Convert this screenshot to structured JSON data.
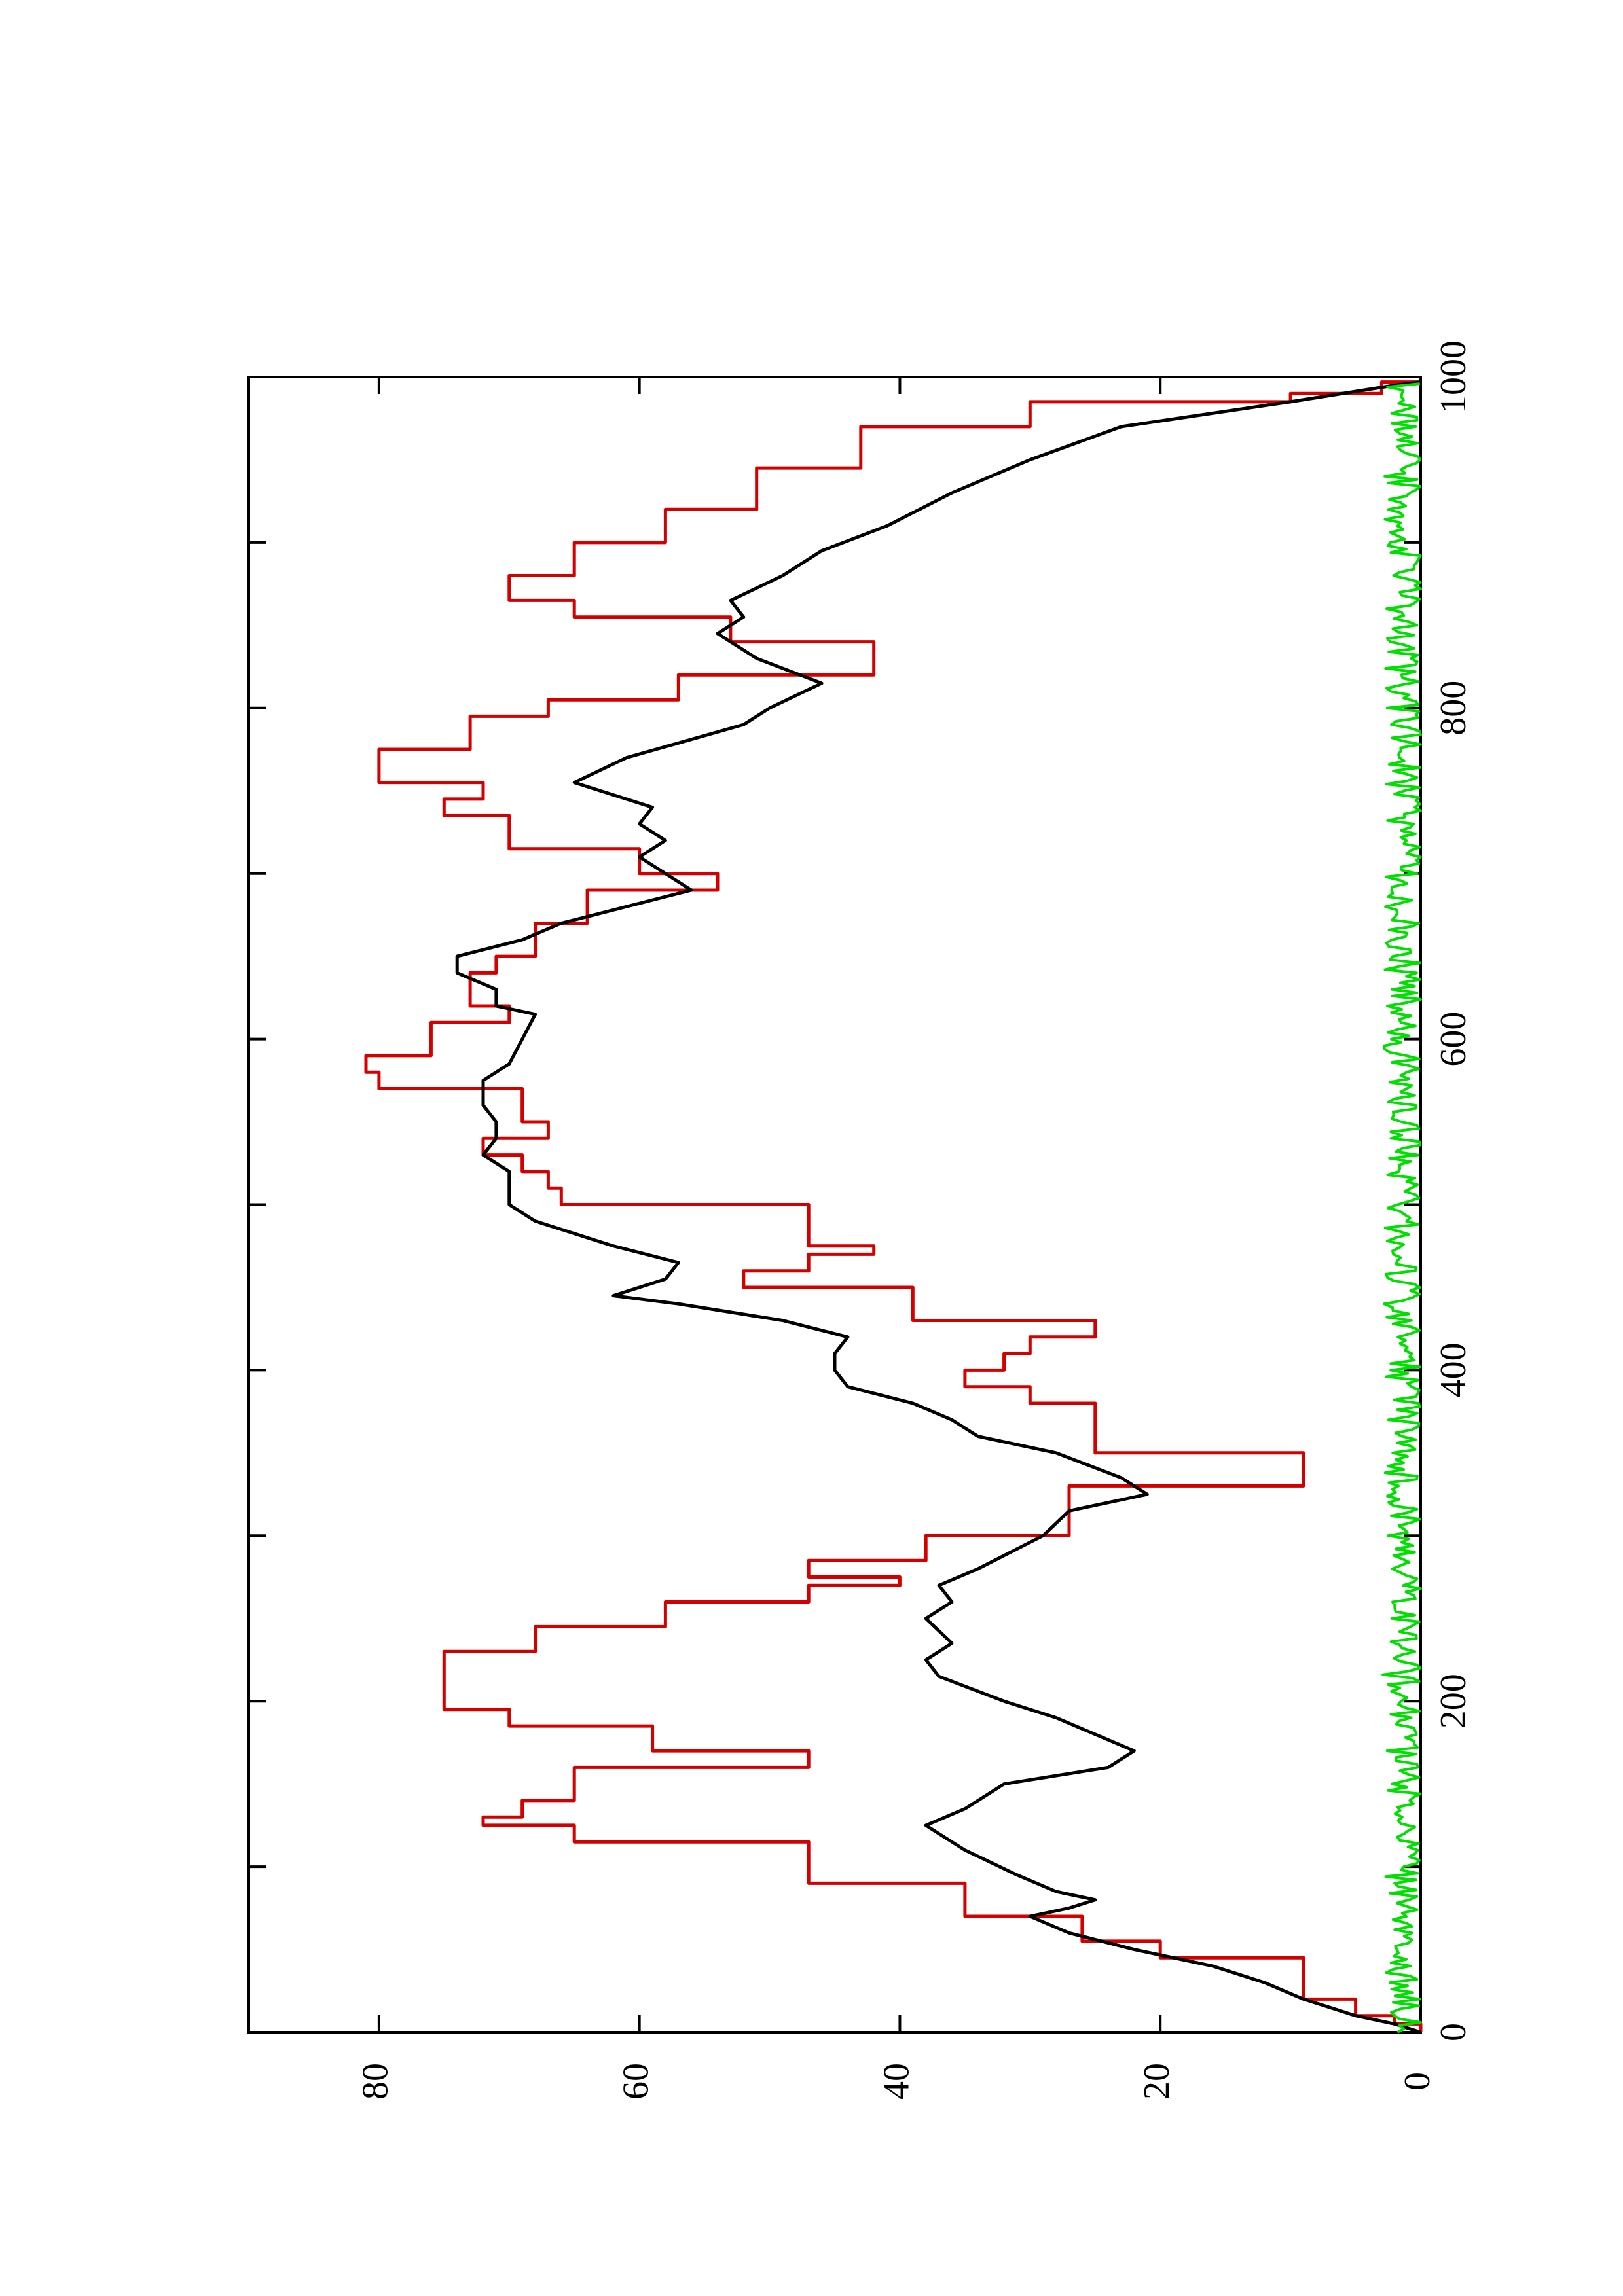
{
  "chart_data": {
    "type": "line",
    "title": "",
    "xlabel": "",
    "ylabel": "",
    "xlim": [
      0,
      1000
    ],
    "ylim": [
      0,
      90
    ],
    "x_ticks": [
      0,
      200,
      400,
      600,
      800,
      1000
    ],
    "x_minor_ticks": [
      100,
      300,
      500,
      700,
      900
    ],
    "y_ticks": [
      0,
      20,
      40,
      60,
      80
    ],
    "grid": false,
    "legend": "none",
    "orientation": "rotated 90 degrees counter-clockwise",
    "series": [
      {
        "color": "#d40000",
        "style": "step",
        "points": [
          [
            0,
            0
          ],
          [
            5,
            2
          ],
          [
            10,
            5
          ],
          [
            20,
            9
          ],
          [
            40,
            9
          ],
          [
            45,
            20
          ],
          [
            55,
            26
          ],
          [
            70,
            35
          ],
          [
            90,
            47
          ],
          [
            115,
            65
          ],
          [
            125,
            72
          ],
          [
            130,
            69
          ],
          [
            140,
            65
          ],
          [
            160,
            47
          ],
          [
            170,
            59
          ],
          [
            185,
            70
          ],
          [
            195,
            75
          ],
          [
            220,
            75
          ],
          [
            230,
            68
          ],
          [
            245,
            58
          ],
          [
            260,
            47
          ],
          [
            270,
            40
          ],
          [
            275,
            47
          ],
          [
            285,
            38
          ],
          [
            300,
            27
          ],
          [
            330,
            9
          ],
          [
            350,
            25
          ],
          [
            370,
            25
          ],
          [
            380,
            30
          ],
          [
            390,
            35
          ],
          [
            400,
            32
          ],
          [
            410,
            30
          ],
          [
            420,
            25
          ],
          [
            430,
            39
          ],
          [
            450,
            52
          ],
          [
            460,
            47
          ],
          [
            470,
            42
          ],
          [
            475,
            47
          ],
          [
            500,
            66
          ],
          [
            510,
            67
          ],
          [
            520,
            69
          ],
          [
            530,
            72
          ],
          [
            540,
            67
          ],
          [
            550,
            69
          ],
          [
            570,
            80
          ],
          [
            580,
            81
          ],
          [
            590,
            76
          ],
          [
            610,
            70
          ],
          [
            620,
            73
          ],
          [
            640,
            71
          ],
          [
            650,
            68
          ],
          [
            670,
            64
          ],
          [
            690,
            54
          ],
          [
            700,
            60
          ],
          [
            715,
            70
          ],
          [
            735,
            75
          ],
          [
            745,
            72
          ],
          [
            755,
            80
          ],
          [
            775,
            73
          ],
          [
            795,
            67
          ],
          [
            805,
            57
          ],
          [
            820,
            42
          ],
          [
            840,
            53
          ],
          [
            855,
            65
          ],
          [
            865,
            70
          ],
          [
            880,
            65
          ],
          [
            900,
            58
          ],
          [
            920,
            51
          ],
          [
            945,
            43
          ],
          [
            970,
            30
          ],
          [
            985,
            10
          ],
          [
            990,
            3
          ],
          [
            997,
            0
          ]
        ]
      },
      {
        "color": "#000000",
        "style": "line",
        "points": [
          [
            0,
            0
          ],
          [
            5,
            2
          ],
          [
            10,
            5
          ],
          [
            20,
            9
          ],
          [
            30,
            12
          ],
          [
            40,
            16
          ],
          [
            50,
            22
          ],
          [
            60,
            27
          ],
          [
            70,
            30
          ],
          [
            75,
            27
          ],
          [
            80,
            25
          ],
          [
            85,
            28
          ],
          [
            95,
            31
          ],
          [
            110,
            35
          ],
          [
            125,
            38
          ],
          [
            135,
            35
          ],
          [
            150,
            32
          ],
          [
            160,
            24
          ],
          [
            170,
            22
          ],
          [
            180,
            25
          ],
          [
            190,
            28
          ],
          [
            200,
            32
          ],
          [
            215,
            37
          ],
          [
            225,
            38
          ],
          [
            235,
            36
          ],
          [
            250,
            38
          ],
          [
            260,
            36
          ],
          [
            270,
            37
          ],
          [
            280,
            34
          ],
          [
            300,
            29
          ],
          [
            315,
            27
          ],
          [
            325,
            21
          ],
          [
            335,
            23
          ],
          [
            350,
            28
          ],
          [
            360,
            34
          ],
          [
            370,
            36
          ],
          [
            380,
            39
          ],
          [
            390,
            44
          ],
          [
            400,
            45
          ],
          [
            410,
            45
          ],
          [
            420,
            44
          ],
          [
            430,
            49
          ],
          [
            440,
            57
          ],
          [
            445,
            62
          ],
          [
            455,
            58
          ],
          [
            465,
            57
          ],
          [
            475,
            62
          ],
          [
            490,
            68
          ],
          [
            500,
            70
          ],
          [
            510,
            70
          ],
          [
            520,
            70
          ],
          [
            530,
            72
          ],
          [
            540,
            71
          ],
          [
            550,
            71
          ],
          [
            560,
            72
          ],
          [
            575,
            72
          ],
          [
            585,
            70
          ],
          [
            600,
            69
          ],
          [
            615,
            68
          ],
          [
            620,
            71
          ],
          [
            630,
            71
          ],
          [
            640,
            74
          ],
          [
            650,
            74
          ],
          [
            660,
            69
          ],
          [
            670,
            66
          ],
          [
            690,
            56
          ],
          [
            700,
            58
          ],
          [
            710,
            60
          ],
          [
            720,
            58
          ],
          [
            730,
            60
          ],
          [
            740,
            59
          ],
          [
            755,
            65
          ],
          [
            770,
            61
          ],
          [
            790,
            52
          ],
          [
            800,
            50
          ],
          [
            815,
            46
          ],
          [
            830,
            51
          ],
          [
            845,
            54
          ],
          [
            855,
            52
          ],
          [
            865,
            53
          ],
          [
            880,
            49
          ],
          [
            895,
            46
          ],
          [
            910,
            41
          ],
          [
            930,
            36
          ],
          [
            950,
            30
          ],
          [
            970,
            23
          ],
          [
            985,
            10
          ],
          [
            995,
            2
          ],
          [
            997,
            0
          ]
        ]
      },
      {
        "color": "#00e000",
        "style": "noise",
        "amplitude": 3,
        "x_range": [
          0,
          997
        ]
      }
    ]
  }
}
